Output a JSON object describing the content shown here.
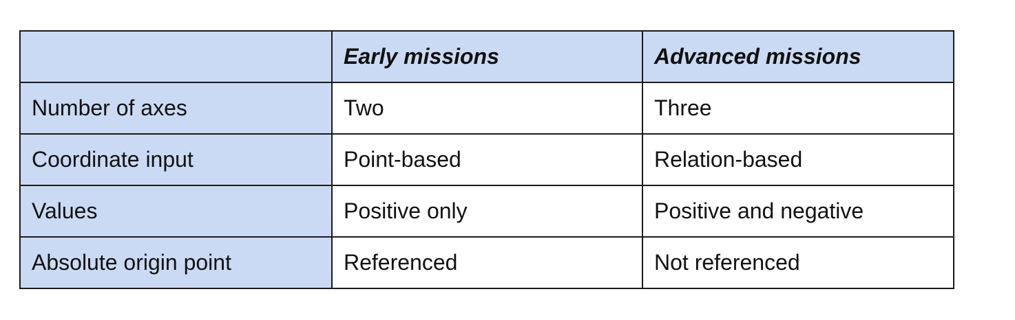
{
  "table": {
    "header": [
      "",
      "Early missions",
      "Advanced missions"
    ],
    "rows": [
      [
        "Number of axes",
        "Two",
        "Three"
      ],
      [
        "Coordinate input",
        "Point-based",
        "Relation-based"
      ],
      [
        "Values",
        "Positive only",
        "Positive and negative"
      ],
      [
        "Absolute origin point",
        "Referenced",
        "Not referenced"
      ]
    ],
    "colors": {
      "header_fill": "#cbdaf4",
      "first_column_fill": "#cbdaf4",
      "cell_fill": "#ffffff",
      "border": "#1a1a1a"
    }
  }
}
